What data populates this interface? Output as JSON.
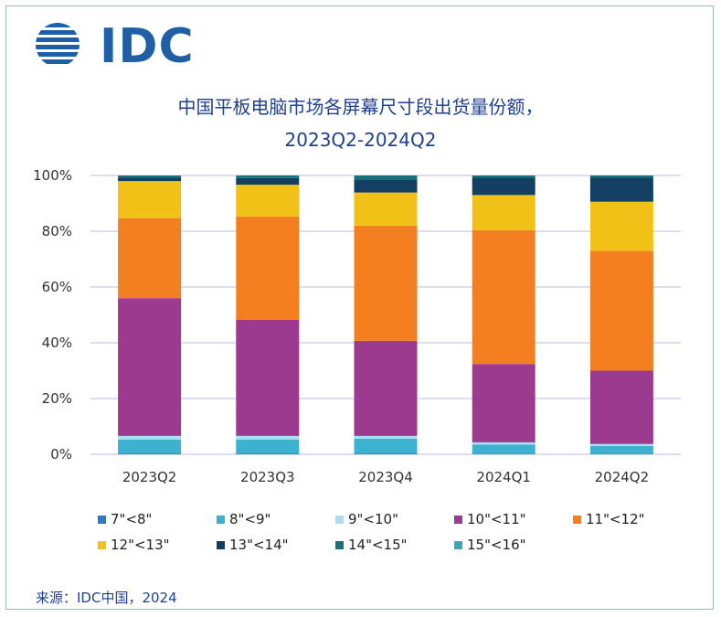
{
  "logo": {
    "text": "IDC",
    "color": "#1f5fa6"
  },
  "title_line1": "中国平板电脑市场各屏幕尺寸段出货量份额，",
  "title_line2": "2023Q2-2024Q2",
  "source": "来源：IDC中国，2024",
  "chart_data": {
    "type": "bar",
    "stacked": true,
    "title": "中国平板电脑市场各屏幕尺寸段出货量份额，2023Q2-2024Q2",
    "categories": [
      "2023Q2",
      "2023Q3",
      "2023Q4",
      "2024Q1",
      "2024Q2"
    ],
    "ylim": [
      0,
      100
    ],
    "yticks": [
      "0%",
      "20%",
      "40%",
      "60%",
      "80%",
      "100%"
    ],
    "grid": true,
    "legend_position": "bottom",
    "series": [
      {
        "name": "7\"<8\"",
        "color": "#2e7bbf",
        "values": [
          0.3,
          0.3,
          0.3,
          0.2,
          0.2
        ]
      },
      {
        "name": "8\"<9\"",
        "color": "#3cb1d0",
        "values": [
          5.0,
          5.0,
          5.3,
          3.3,
          2.8
        ]
      },
      {
        "name": "9\"<10\"",
        "color": "#a9def0",
        "values": [
          1.3,
          1.3,
          1.0,
          0.8,
          0.7
        ]
      },
      {
        "name": "10\"<11\"",
        "color": "#9b3a8f",
        "values": [
          49.4,
          41.6,
          34.1,
          28.1,
          26.3
        ]
      },
      {
        "name": "11\"<12\"",
        "color": "#f47f20",
        "values": [
          28.7,
          37.1,
          41.3,
          48.0,
          43.0
        ]
      },
      {
        "name": "12\"<13\"",
        "color": "#f2c118",
        "values": [
          13.3,
          11.4,
          11.9,
          12.6,
          17.6
        ]
      },
      {
        "name": "13\"<14\"",
        "color": "#133f63",
        "values": [
          1.2,
          2.4,
          4.6,
          6.2,
          8.6
        ]
      },
      {
        "name": "14\"<15\"",
        "color": "#17717b",
        "values": [
          0.8,
          0.9,
          1.5,
          0.8,
          0.8
        ]
      },
      {
        "name": "15\"<16\"",
        "color": "#3aa6b9",
        "values": [
          0.0,
          0.0,
          0.0,
          0.0,
          0.0
        ]
      }
    ]
  }
}
